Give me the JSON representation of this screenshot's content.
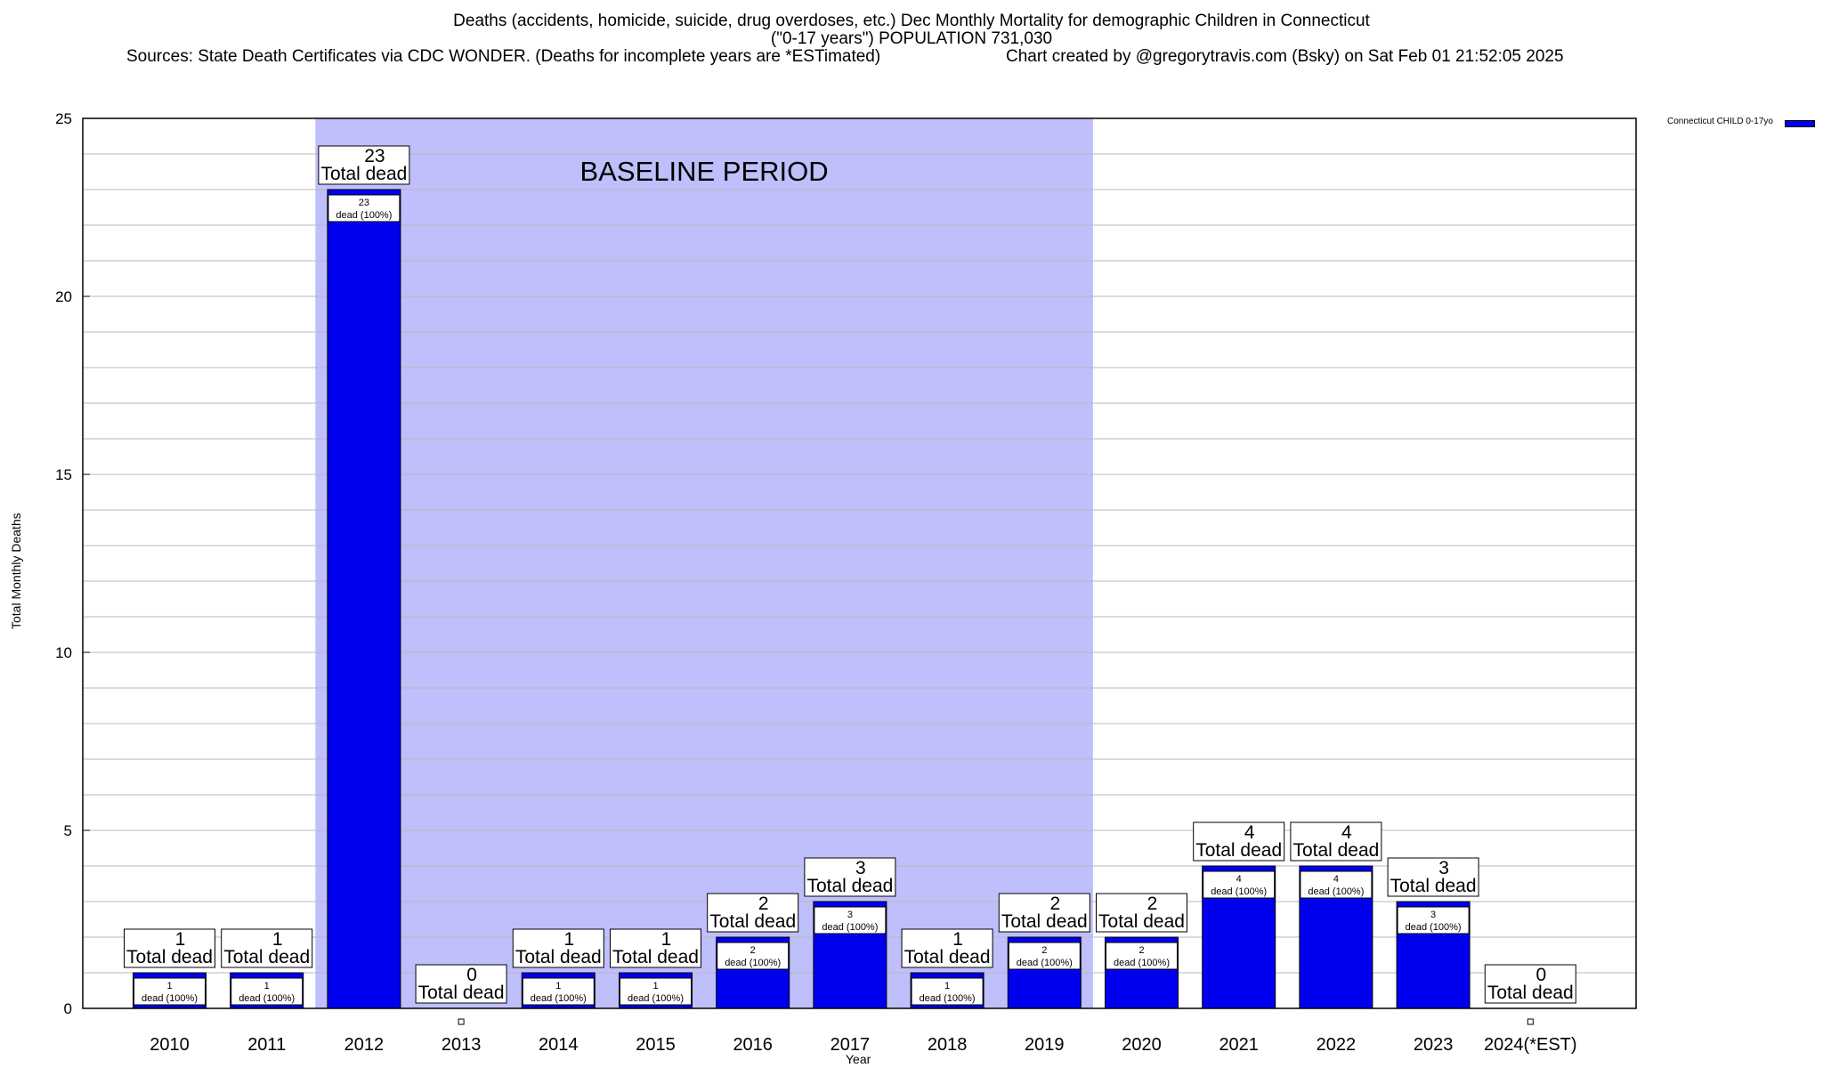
{
  "header": {
    "title_line1": "Deaths (accidents, homicide, suicide, drug overdoses, etc.) Dec Monthly Mortality for demographic Children in Connecticut",
    "title_line2": "(\"0-17 years\") POPULATION 731,030",
    "sources": "Sources: State Death Certificates via CDC WONDER. (Deaths for incomplete years are *ESTimated)",
    "credit": "Chart created by @gregorytravis.com (Bsky) on Sat Feb 01 21:52:05 2025"
  },
  "chart_data": {
    "type": "bar",
    "title": "Deaths (accidents, homicide, suicide, drug overdoses, etc.) Dec Monthly Mortality for demographic Children in Connecticut (\"0-17 years\") POPULATION 731,030",
    "xlabel": "Year",
    "ylabel": "Total Monthly Deaths",
    "ylim": [
      0,
      25
    ],
    "yticks": [
      0,
      5,
      10,
      15,
      20,
      25
    ],
    "grid": true,
    "legend_position": "top-right",
    "categories": [
      "2010",
      "2011",
      "2012",
      "2013",
      "2014",
      "2015",
      "2016",
      "2017",
      "2018",
      "2019",
      "2020",
      "2021",
      "2022",
      "2023",
      "2024(*EST)"
    ],
    "series": [
      {
        "name": "Connecticut CHILD 0-17yo",
        "color": "#0000ee",
        "values": [
          1,
          1,
          23,
          0,
          1,
          1,
          2,
          3,
          1,
          2,
          2,
          4,
          4,
          3,
          0
        ]
      }
    ],
    "total_label_suffix": "Total dead",
    "inner_label_suffix": "dead (100%)",
    "baseline_region": {
      "label": "BASELINE PERIOD",
      "start_category": "2012",
      "end_category": "2019",
      "color": "#bfbffb"
    }
  }
}
